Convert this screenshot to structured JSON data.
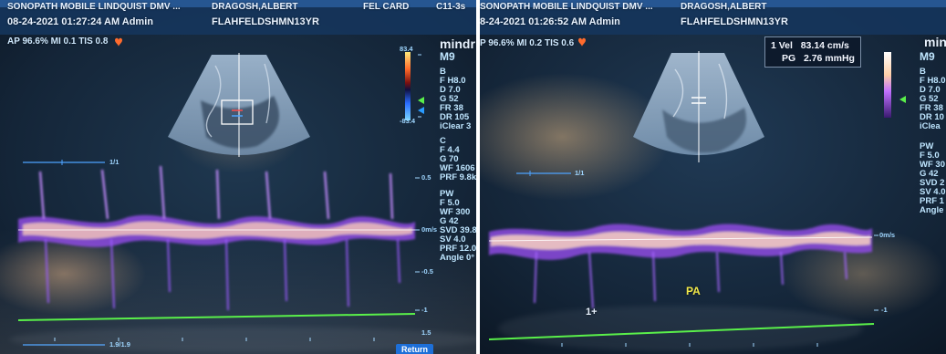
{
  "left": {
    "header_top": "SONOPATH MOBILE LINDQUIST DMV ...",
    "patient_top": "DRAGOSH,ALBERT",
    "card_top": "FEL CARD",
    "corner_top": "C11-3s",
    "datetime": "08-24-2021  01:27:24 AM  Admin",
    "patient_id": "FLAHFELDSHMN13YR",
    "status": "AP 96.6%  MI 0.1  TIS 0.8",
    "brand": "mindr",
    "mode": "M9",
    "color_top": "83.4",
    "color_bottom": "-83.4",
    "b_params": [
      "B",
      "F H8.0",
      "D 7.0",
      "G 52",
      "FR 38",
      "DR 105",
      "iClear 3"
    ],
    "c_params": [
      "C",
      "F 4.4",
      "G 70",
      "WF 1606",
      "PRF 9.8k"
    ],
    "pw_params": [
      "PW",
      "F 5.0",
      "WF 300",
      "G 42",
      "SVD 39.8",
      "SV 4.0",
      "PRF 12.0",
      "Angle 0°"
    ],
    "scale_labels": [
      "0.5",
      "0m/s",
      "-0.5",
      "-1",
      "1.5"
    ],
    "sweep_label": "1/1",
    "sweep_label_bottom": "1.9/1.9",
    "return_button": "Return"
  },
  "right": {
    "header_top": "SONOPATH MOBILE LINDQUIST DMV ...",
    "patient_top": "DRAGOSH,ALBERT",
    "datetime": "8-24-2021  01:26:52 AM  Admin",
    "patient_id": "FLAHFELDSHMN13YR",
    "status": "P 96.6%  MI 0.2  TIS 0.6",
    "measure": {
      "vel_label": "1 Vel",
      "vel_value": "83.14 cm/s",
      "pg_label": "PG",
      "pg_value": "2.76 mmHg"
    },
    "brand": "min",
    "mode": "M9",
    "b_params": [
      "B",
      "F H8.0",
      "D 7.0",
      "G 52",
      "FR 38",
      "DR 10",
      "iClea"
    ],
    "pw_params": [
      "PW",
      "F 5.0",
      "WF 30",
      "G 42",
      "SVD 2",
      "SV 4.0",
      "PRF 1",
      "Angle"
    ],
    "scale_labels": [
      "0m/s",
      "-1"
    ],
    "sweep_label": "1/1",
    "annotation": "PA",
    "cursor_label": "1+"
  },
  "colors": {
    "background": "#0e1b2b",
    "text": "#e9f3ff",
    "baseline_green": "#5af04a",
    "spectral": "#b46bff",
    "accent": "#1d6fd8"
  }
}
